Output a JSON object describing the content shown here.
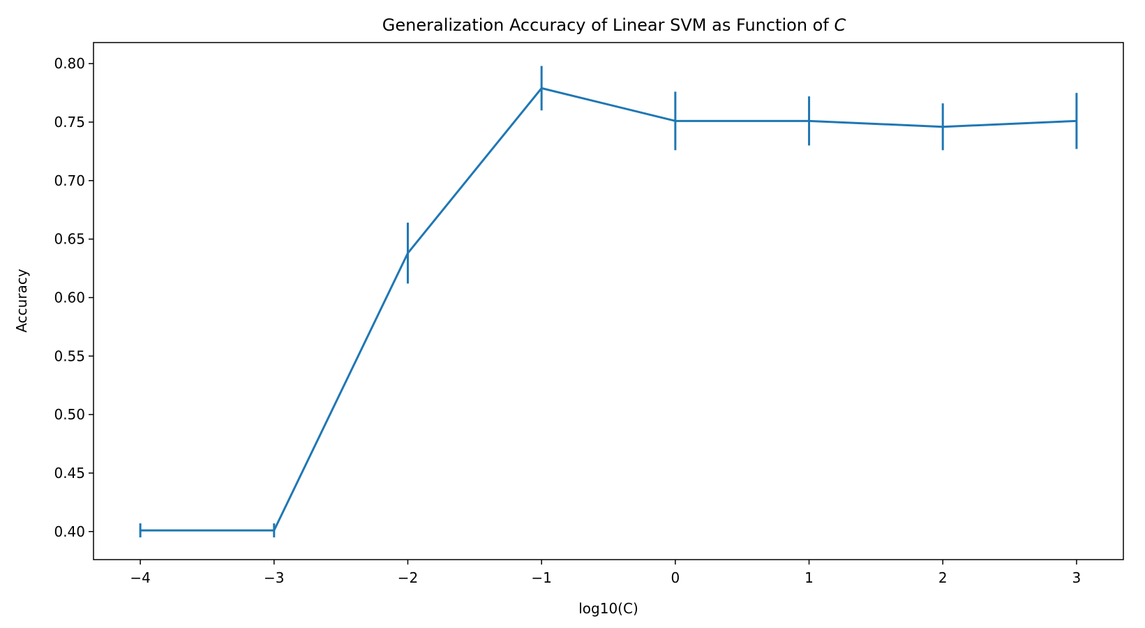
{
  "chart_data": {
    "type": "line",
    "title": "Generalization Accuracy of Linear SVM as Function of",
    "title_symbol": "C",
    "xlabel": "log10(C)",
    "ylabel": "Accuracy",
    "x": [
      -4,
      -3,
      -2,
      -1,
      0,
      1,
      2,
      3
    ],
    "series": [
      {
        "values": [
          0.401,
          0.401,
          0.638,
          0.779,
          0.751,
          0.751,
          0.746,
          0.751
        ],
        "errors": [
          0.006,
          0.006,
          0.026,
          0.019,
          0.025,
          0.021,
          0.02,
          0.024
        ],
        "color": "#1f77b4"
      }
    ],
    "xlim": [
      -4.35,
      3.35
    ],
    "ylim": [
      0.376,
      0.818
    ],
    "xticks": [
      -4,
      -3,
      -2,
      -1,
      0,
      1,
      2,
      3
    ],
    "xtick_labels": [
      "−4",
      "−3",
      "−2",
      "−1",
      "0",
      "1",
      "2",
      "3"
    ],
    "yticks": [
      0.4,
      0.45,
      0.5,
      0.55,
      0.6,
      0.65,
      0.7,
      0.75,
      0.8
    ],
    "ytick_labels": [
      "0.40",
      "0.45",
      "0.50",
      "0.55",
      "0.60",
      "0.65",
      "0.70",
      "0.75",
      "0.80"
    ],
    "grid": false,
    "legend": "none"
  }
}
